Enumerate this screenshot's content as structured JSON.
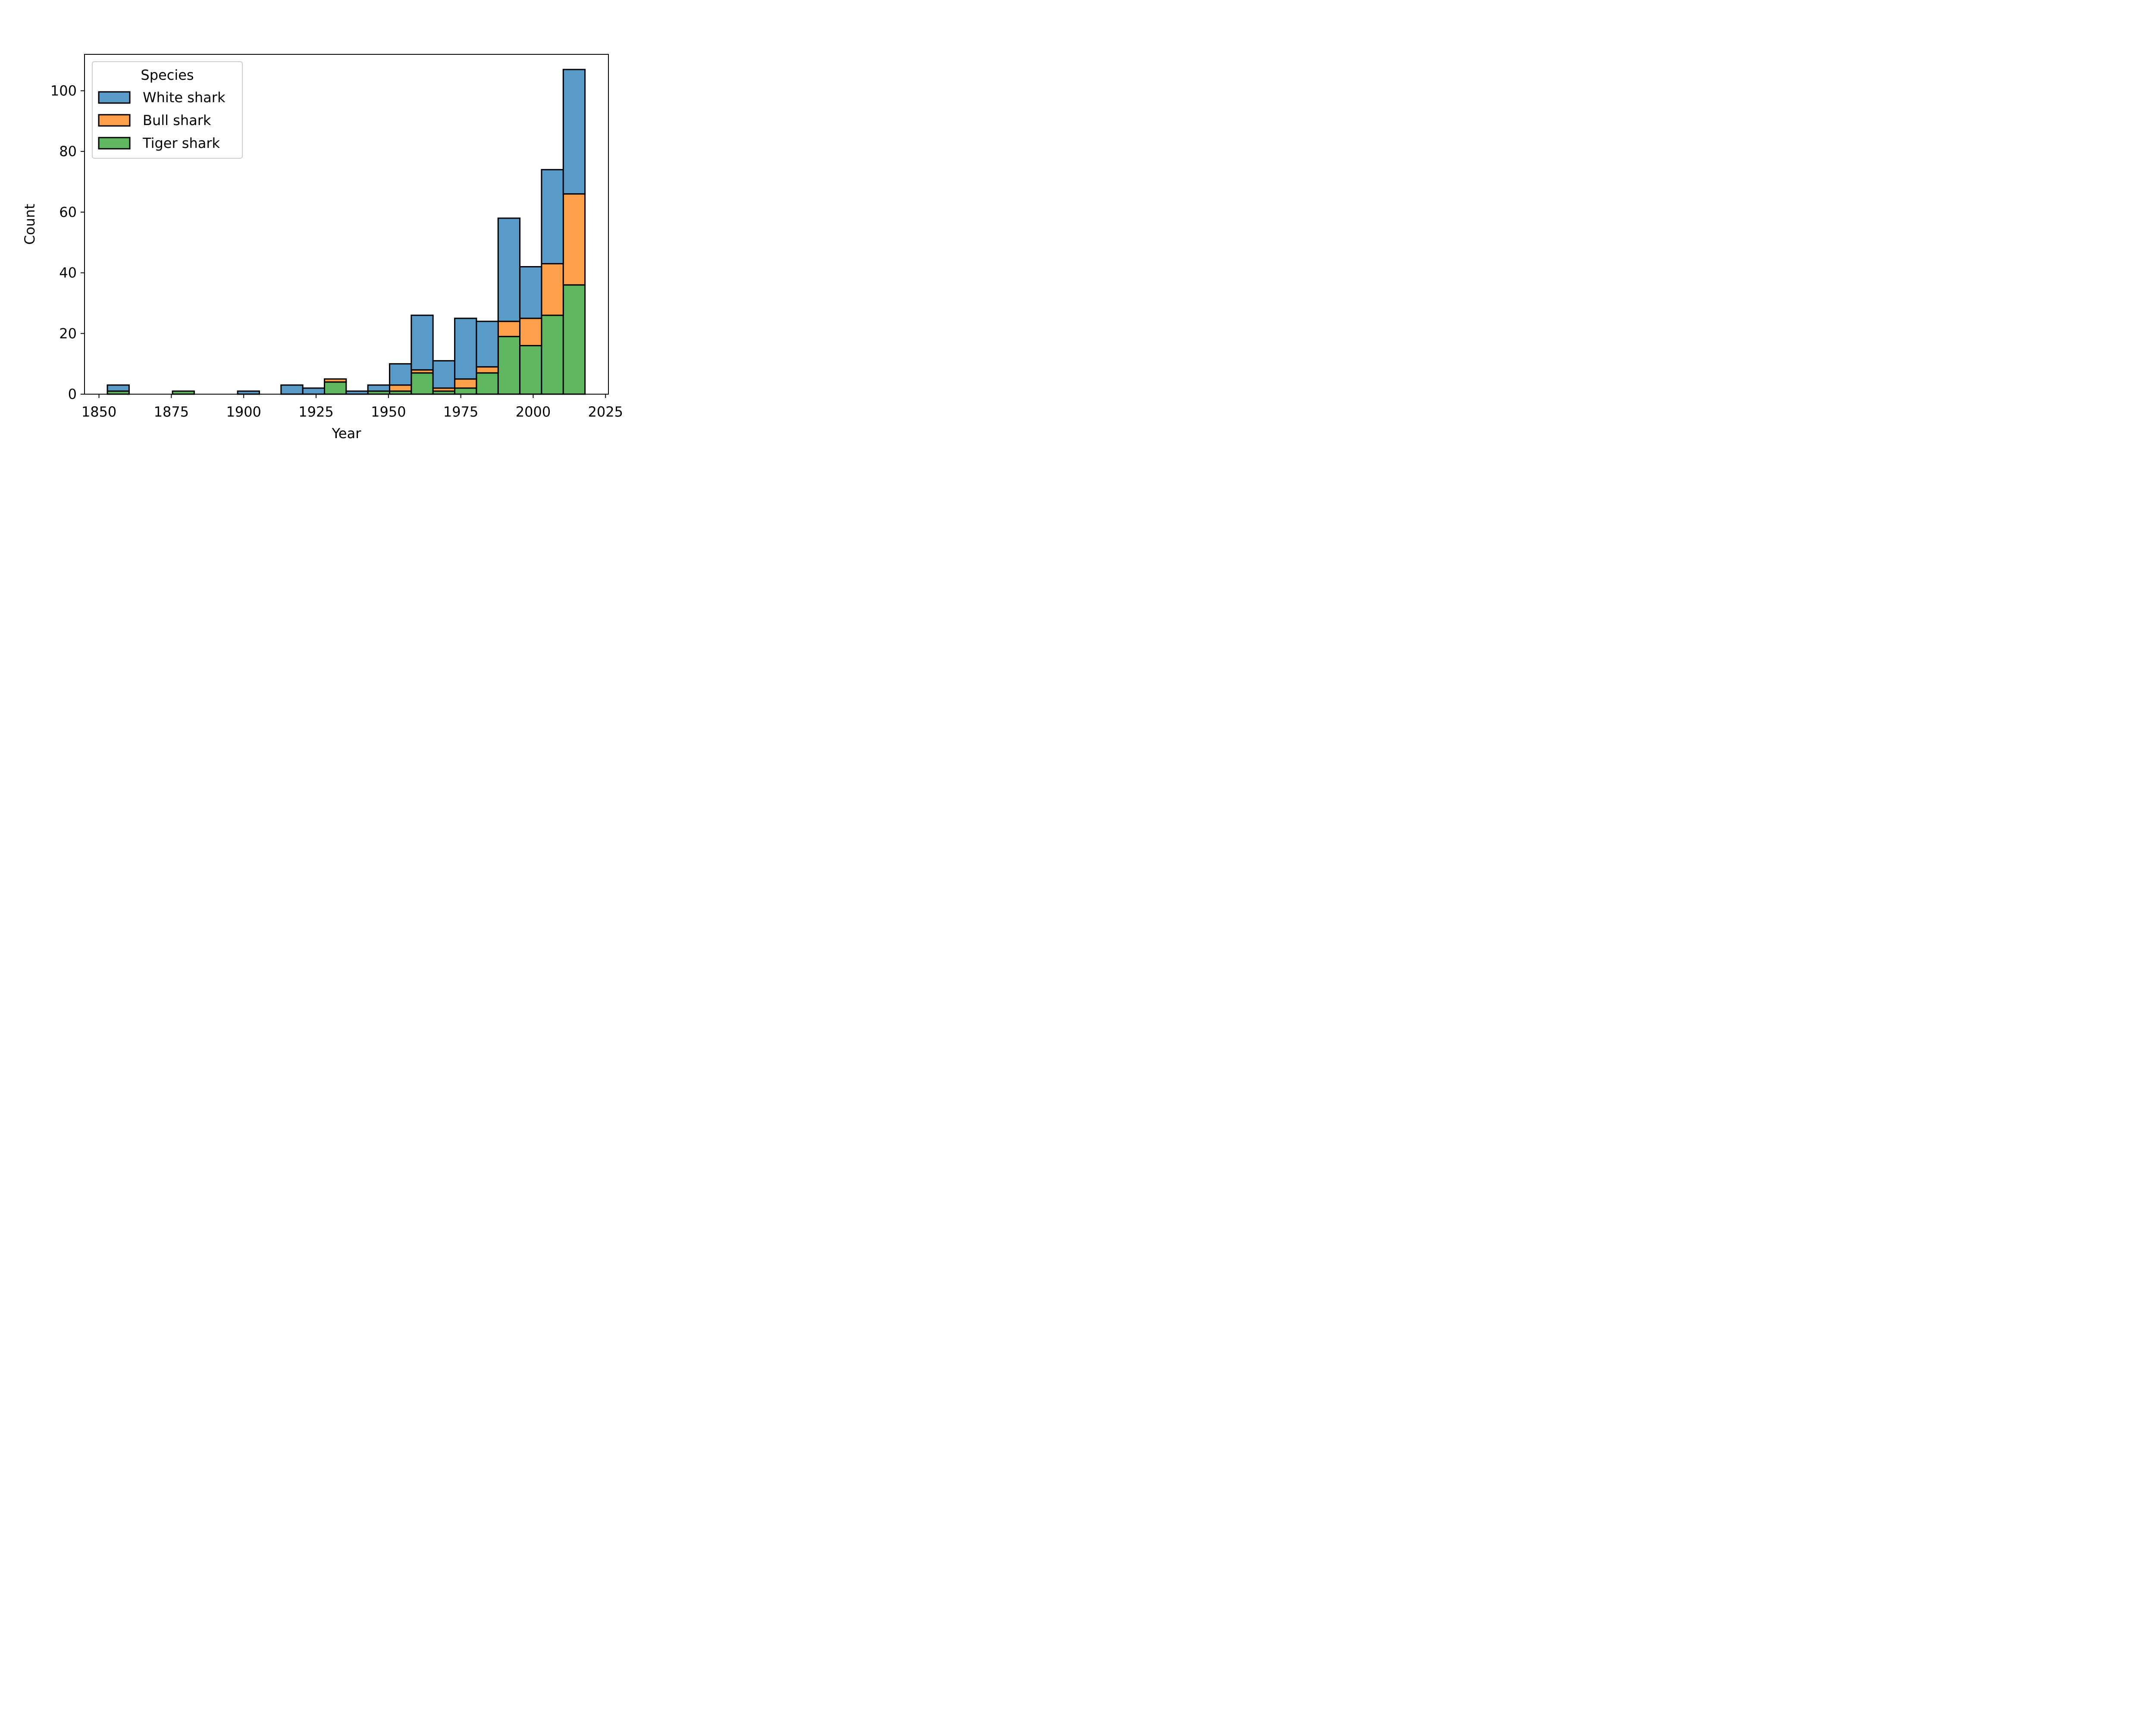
{
  "chart_data": {
    "type": "histogram",
    "stacked": true,
    "title": "",
    "xlabel": "Year",
    "ylabel": "Count",
    "xlim": [
      1845,
      2026
    ],
    "ylim": [
      0,
      112
    ],
    "xticks": [
      1850,
      1875,
      1900,
      1925,
      1950,
      1975,
      2000,
      2025
    ],
    "yticks": [
      0,
      20,
      40,
      60,
      80,
      100
    ],
    "grid": false,
    "legend": {
      "title": "Species",
      "placement": "top-left"
    },
    "bin_edges": [
      1852.9,
      1860.4,
      1867.9,
      1875.4,
      1882.9,
      1890.4,
      1897.9,
      1905.4,
      1912.9,
      1920.4,
      1927.9,
      1935.4,
      1942.9,
      1950.4,
      1957.9,
      1965.4,
      1972.9,
      1980.4,
      1987.9,
      1995.4,
      2002.9,
      2010.4,
      2017.9
    ],
    "series": [
      {
        "name": "Tiger shark",
        "color": "#5fb85f",
        "values": [
          1,
          0,
          0,
          1,
          0,
          0,
          0,
          0,
          0,
          0,
          4,
          0,
          1,
          1,
          7,
          1,
          2,
          7,
          19,
          16,
          26,
          36
        ]
      },
      {
        "name": "Bull shark",
        "color": "#fe9f4a",
        "values": [
          0,
          0,
          0,
          0,
          0,
          0,
          0,
          0,
          0,
          0,
          1,
          0,
          0,
          2,
          1,
          1,
          3,
          2,
          5,
          9,
          17,
          30
        ]
      },
      {
        "name": "White shark",
        "color": "#589bc8",
        "values": [
          2,
          0,
          0,
          0,
          0,
          0,
          1,
          0,
          3,
          2,
          0,
          1,
          2,
          7,
          18,
          9,
          20,
          15,
          34,
          17,
          31,
          41
        ]
      }
    ],
    "legend_order": [
      "White shark",
      "Bull shark",
      "Tiger shark"
    ]
  }
}
